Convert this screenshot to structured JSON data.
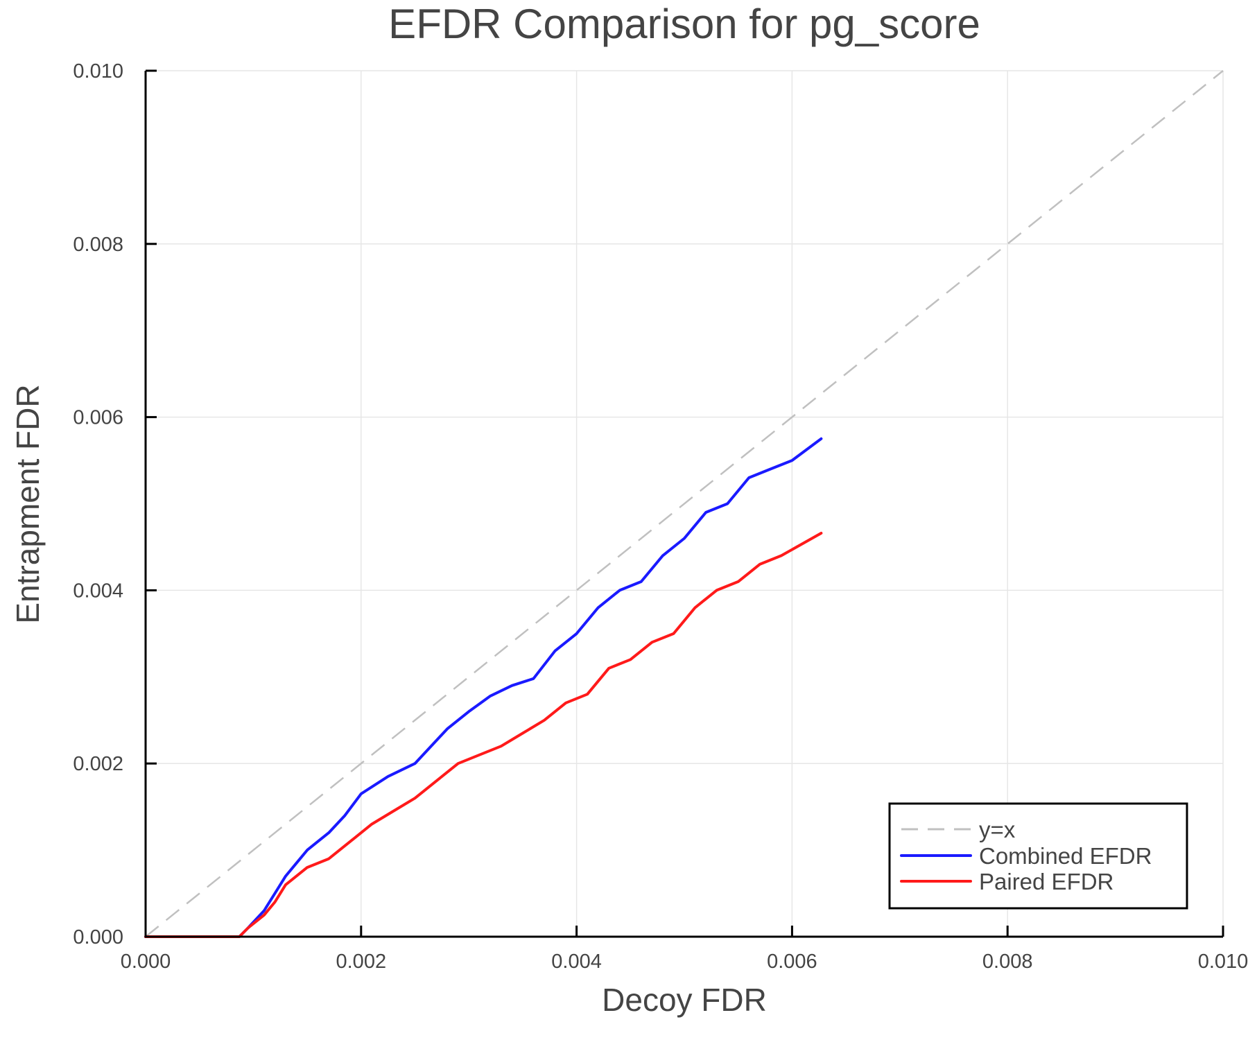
{
  "chart_data": {
    "type": "line",
    "title": "EFDR Comparison for pg_score",
    "xlabel": "Decoy FDR",
    "ylabel": "Entrapment FDR",
    "xlim": [
      0.0,
      0.01
    ],
    "ylim": [
      0.0,
      0.01
    ],
    "xticks": [
      "0.000",
      "0.002",
      "0.004",
      "0.006",
      "0.008",
      "0.010"
    ],
    "yticks": [
      "0.000",
      "0.002",
      "0.004",
      "0.006",
      "0.008",
      "0.010"
    ],
    "grid": true,
    "legend_position": "bottom-right",
    "series": [
      {
        "name": "y=x",
        "color": "#c0c0c0",
        "style": "dashed",
        "x": [
          0.0,
          0.01
        ],
        "y": [
          0.0,
          0.01
        ]
      },
      {
        "name": "Combined EFDR",
        "color": "#1a1aff",
        "style": "solid",
        "x": [
          0.0,
          0.00087,
          0.00095,
          0.0011,
          0.0012,
          0.0013,
          0.0014,
          0.0015,
          0.0016,
          0.0017,
          0.00185,
          0.002,
          0.00225,
          0.0025,
          0.0028,
          0.003,
          0.0032,
          0.0034,
          0.0036,
          0.0038,
          0.004,
          0.0042,
          0.0044,
          0.0046,
          0.0048,
          0.005,
          0.0052,
          0.0054,
          0.0056,
          0.0058,
          0.006,
          0.00627
        ],
        "y": [
          0.0,
          0.0,
          0.0001,
          0.0003,
          0.0005,
          0.0007,
          0.00085,
          0.001,
          0.0011,
          0.0012,
          0.0014,
          0.00165,
          0.00185,
          0.002,
          0.0024,
          0.0026,
          0.00278,
          0.0029,
          0.00298,
          0.0033,
          0.0035,
          0.0038,
          0.004,
          0.0041,
          0.0044,
          0.0046,
          0.0049,
          0.005,
          0.0053,
          0.0054,
          0.0055,
          0.00575
        ]
      },
      {
        "name": "Paired EFDR",
        "color": "#ff1a1a",
        "style": "solid",
        "x": [
          0.0,
          0.00087,
          0.00095,
          0.0011,
          0.0012,
          0.0013,
          0.0015,
          0.0017,
          0.0019,
          0.0021,
          0.0023,
          0.0025,
          0.0027,
          0.0029,
          0.0031,
          0.0033,
          0.0035,
          0.0037,
          0.0039,
          0.0041,
          0.0043,
          0.0045,
          0.0047,
          0.0049,
          0.0051,
          0.0053,
          0.0055,
          0.0057,
          0.0059,
          0.00627
        ],
        "y": [
          0.0,
          0.0,
          0.0001,
          0.00025,
          0.0004,
          0.0006,
          0.0008,
          0.0009,
          0.0011,
          0.0013,
          0.00145,
          0.0016,
          0.0018,
          0.002,
          0.0021,
          0.0022,
          0.00235,
          0.0025,
          0.0027,
          0.0028,
          0.0031,
          0.0032,
          0.0034,
          0.0035,
          0.0038,
          0.004,
          0.0041,
          0.0043,
          0.0044,
          0.00466
        ]
      }
    ]
  },
  "legend": {
    "items": [
      {
        "label": "y=x",
        "color": "#c0c0c0",
        "dashed": true
      },
      {
        "label": "Combined EFDR",
        "color": "#1a1aff",
        "dashed": false
      },
      {
        "label": "Paired EFDR",
        "color": "#ff1a1a",
        "dashed": false
      }
    ]
  }
}
